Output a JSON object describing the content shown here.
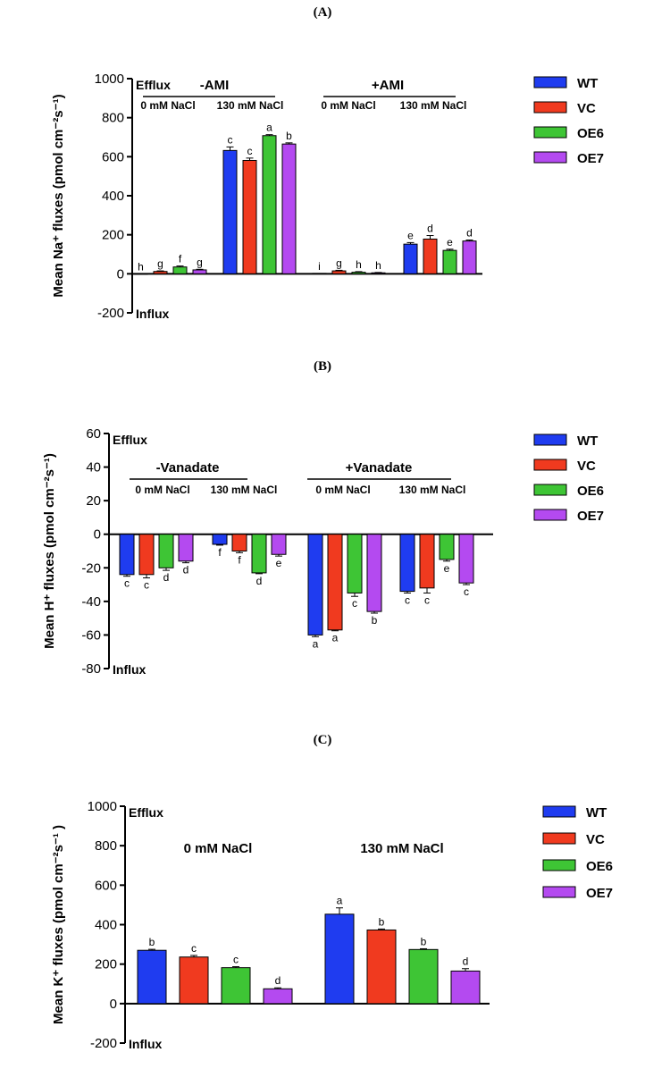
{
  "panels": [
    {
      "label": "(A)"
    },
    {
      "label": "(B)"
    },
    {
      "label": "(C)"
    }
  ],
  "colors": {
    "WT": "#1f3cf0",
    "VC": "#f03a1f",
    "OE6": "#3ec535",
    "OE7": "#b44af0"
  },
  "chart_data": [
    {
      "type": "bar",
      "ylabel": "Mean Na⁺ fluxes (pmol cm⁻²s⁻¹)",
      "ylim": [
        -200,
        1000
      ],
      "yticks": [
        -200,
        0,
        200,
        400,
        600,
        800,
        1000
      ],
      "annotations": {
        "top": "Efflux",
        "bottom": "Influx"
      },
      "super_groups": [
        "-AMI",
        "+AMI"
      ],
      "categories": [
        "-AMI 0 mM NaCl",
        "-AMI 130 mM NaCl",
        "+AMI 0 mM NaCl",
        "+AMI 130 mM NaCl"
      ],
      "category_labels": [
        "0 mM NaCl",
        "130 mM NaCl",
        "0 mM NaCl",
        "130 mM NaCl"
      ],
      "series": [
        {
          "name": "WT",
          "values": [
            0,
            632,
            2,
            152
          ],
          "errors": [
            0,
            18,
            0,
            8
          ],
          "letters": [
            "h",
            "c",
            "i",
            "e"
          ]
        },
        {
          "name": "VC",
          "values": [
            12,
            581,
            15,
            178
          ],
          "errors": [
            3,
            12,
            3,
            18
          ],
          "letters": [
            "g",
            "c",
            "g",
            "d"
          ]
        },
        {
          "name": "OE6",
          "values": [
            35,
            708,
            8,
            120
          ],
          "errors": [
            5,
            5,
            3,
            6
          ],
          "letters": [
            "f",
            "a",
            "h",
            "e"
          ]
        },
        {
          "name": "OE7",
          "values": [
            20,
            665,
            5,
            168
          ],
          "errors": [
            3,
            6,
            2,
            5
          ],
          "letters": [
            "g",
            "b",
            "h",
            "d"
          ]
        }
      ],
      "legend": [
        "WT",
        "VC",
        "OE6",
        "OE7"
      ],
      "legend_position": "right"
    },
    {
      "type": "bar",
      "ylabel": "Mean H⁺ fluxes (pmol cm⁻²s⁻¹)",
      "ylim": [
        -80,
        60
      ],
      "yticks": [
        -80,
        -60,
        -40,
        -20,
        0,
        20,
        40,
        60
      ],
      "annotations": {
        "top": "Efflux",
        "bottom": "Influx"
      },
      "super_groups": [
        "-Vanadate",
        "+Vanadate"
      ],
      "categories": [
        "-Vanadate 0 mM NaCl",
        "-Vanadate 130 mM NaCl",
        "+Vanadate 0 mM NaCl",
        "+Vanadate 130 mM NaCl"
      ],
      "category_labels": [
        "0 mM NaCl",
        "130 mM NaCl",
        "0 mM NaCl",
        "130 mM NaCl"
      ],
      "series": [
        {
          "name": "WT",
          "values": [
            -24,
            -6,
            -60,
            -34
          ],
          "errors": [
            1,
            0.5,
            1,
            1
          ],
          "letters": [
            "c",
            "f",
            "a",
            "c"
          ]
        },
        {
          "name": "VC",
          "values": [
            -24,
            -10,
            -57,
            -32
          ],
          "errors": [
            2,
            1,
            0.5,
            3
          ],
          "letters": [
            "c",
            "f",
            "a",
            "c"
          ]
        },
        {
          "name": "OE6",
          "values": [
            -20,
            -23,
            -35,
            -15
          ],
          "errors": [
            1.5,
            0.5,
            2,
            1
          ],
          "letters": [
            "d",
            "d",
            "c",
            "e"
          ]
        },
        {
          "name": "OE7",
          "values": [
            -16,
            -12,
            -46,
            -29
          ],
          "errors": [
            1,
            1,
            1,
            1
          ],
          "letters": [
            "d",
            "e",
            "b",
            "c"
          ]
        }
      ],
      "legend": [
        "WT",
        "VC",
        "OE6",
        "OE7"
      ],
      "legend_position": "right"
    },
    {
      "type": "bar",
      "ylabel": "Mean K⁺ fluxes (pmol cm⁻²s⁻¹ )",
      "ylim": [
        -200,
        1000
      ],
      "yticks": [
        -200,
        0,
        200,
        400,
        600,
        800,
        1000
      ],
      "annotations": {
        "top": "Efflux",
        "bottom": "Influx"
      },
      "categories": [
        "0 mM NaCl",
        "130 mM NaCl"
      ],
      "category_labels": [
        "0 mM NaCl",
        "130 mM NaCl"
      ],
      "series": [
        {
          "name": "WT",
          "values": [
            270,
            453
          ],
          "errors": [
            5,
            32
          ],
          "letters": [
            "b",
            "a"
          ]
        },
        {
          "name": "VC",
          "values": [
            236,
            373
          ],
          "errors": [
            8,
            5
          ],
          "letters": [
            "c",
            "b"
          ]
        },
        {
          "name": "OE6",
          "values": [
            182,
            274
          ],
          "errors": [
            5,
            4
          ],
          "letters": [
            "c",
            "b"
          ]
        },
        {
          "name": "OE7",
          "values": [
            75,
            165
          ],
          "errors": [
            5,
            12
          ],
          "letters": [
            "d",
            "d"
          ]
        }
      ],
      "legend": [
        "WT",
        "VC",
        "OE6",
        "OE7"
      ],
      "legend_position": "right"
    }
  ]
}
